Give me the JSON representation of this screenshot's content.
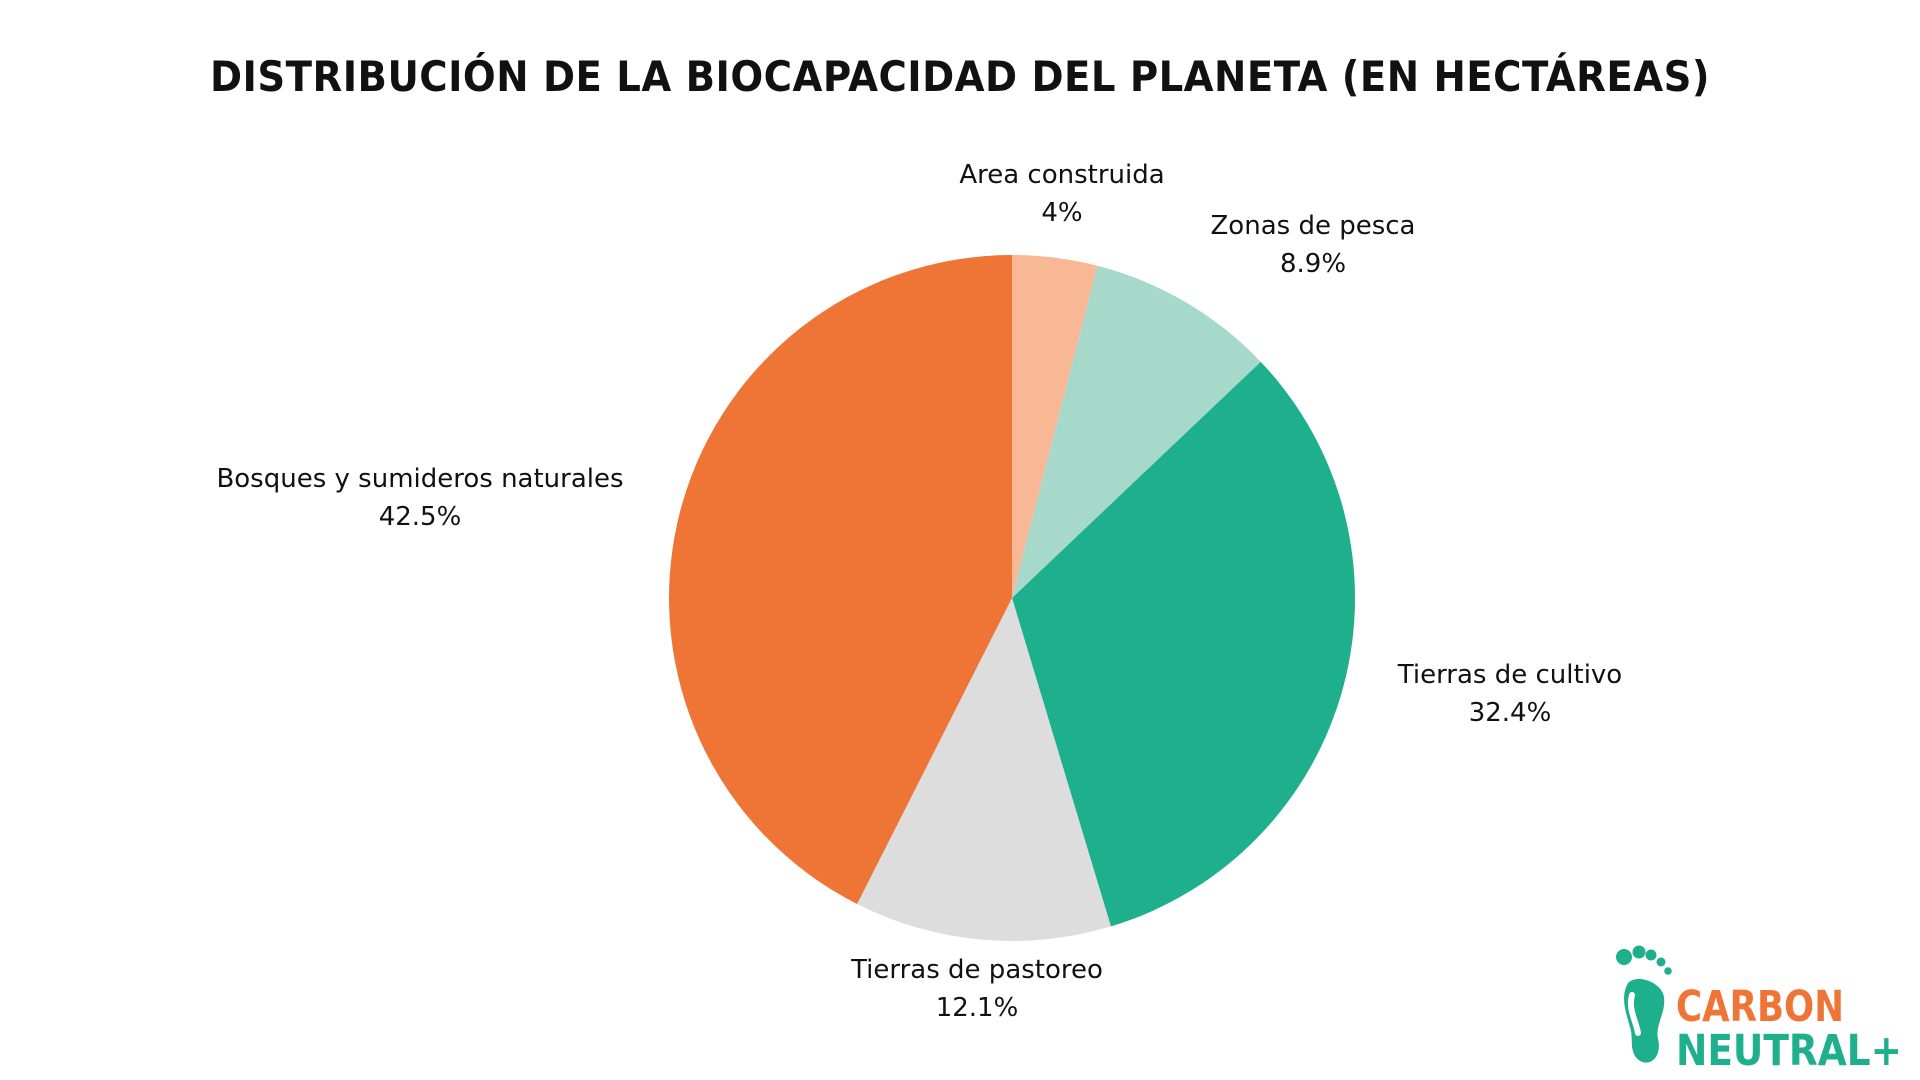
{
  "chart_data": {
    "type": "pie",
    "title": "DISTRIBUCIÓN DE LA BIOCAPACIDAD DEL PLANETA (EN HECTÁREAS)",
    "slices": [
      {
        "label": "Area construida",
        "value": 4,
        "value_label": "4%",
        "color": "#F8B896"
      },
      {
        "label": "Zonas de pesca",
        "value": 8.9,
        "value_label": "8.9%",
        "color": "#A6D9CA"
      },
      {
        "label": "Tierras de cultivo",
        "value": 32.4,
        "value_label": "32.4%",
        "color": "#1EAF8C"
      },
      {
        "label": "Tierras de pastoreo",
        "value": 12.1,
        "value_label": "12.1%",
        "color": "#DDDDDD"
      },
      {
        "label": "Bosques y sumideros naturales",
        "value": 42.5,
        "value_label": "42.5%",
        "color": "#EE7536"
      }
    ],
    "start_angle_deg": 0,
    "direction": "clockwise",
    "legend": "none"
  },
  "brand": {
    "line1": "CARBON",
    "line2": "NEUTRAL+",
    "logo_icon": "footprint-icon",
    "color_line1": "#EE7536",
    "color_line2": "#1EAF8C"
  }
}
